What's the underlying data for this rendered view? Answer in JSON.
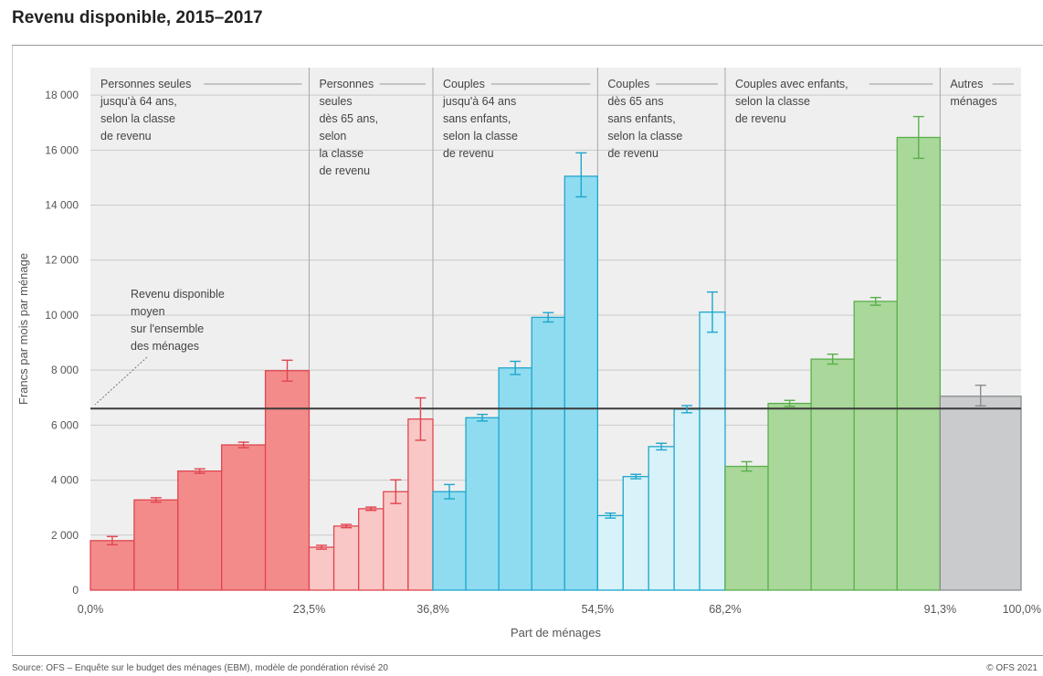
{
  "page": {
    "title": "Revenu disponible, 2015–2017",
    "source": "Source: OFS – Enquête sur le budget des ménages (EBM), modèle de pondération révisé 20",
    "copyright": "© OFS 2021"
  },
  "chart_data": {
    "type": "bar",
    "title": "Revenu disponible, 2015–2017",
    "xlabel": "Part de ménages",
    "ylabel": "Francs par mois par ménage",
    "ylim": [
      0,
      19000
    ],
    "xlim": [
      0,
      100
    ],
    "y_ticks": [
      0,
      2000,
      4000,
      6000,
      8000,
      10000,
      12000,
      14000,
      16000,
      18000
    ],
    "y_tick_labels": [
      "0",
      "2 000",
      "4 000",
      "6 000",
      "8 000",
      "10 000",
      "12 000",
      "14 000",
      "16 000",
      "18 000"
    ],
    "x_ticks": [
      0,
      23.5,
      36.8,
      54.5,
      68.2,
      91.3,
      100
    ],
    "x_tick_labels": [
      "0,0%",
      "23,5%",
      "36,8%",
      "54,5%",
      "68,2%",
      "91,3%",
      "100,0%"
    ],
    "grid": true,
    "reference_line": {
      "value": 6600,
      "label": [
        "Revenu disponible",
        "moyen",
        "sur l'ensemble",
        "des ménages"
      ]
    },
    "series": [
      {
        "group": [
          "Personnes seules",
          "jusqu'à 64 ans,",
          "selon la classe",
          "de revenu"
        ],
        "x_start": 0,
        "x_end": 23.5,
        "fill": "#f38b8a",
        "stroke": "#e0454f",
        "values": [
          1800,
          3280,
          4330,
          5280,
          7980
        ],
        "errors": [
          [
            1650,
            1950
          ],
          [
            3200,
            3360
          ],
          [
            4250,
            4410
          ],
          [
            5180,
            5380
          ],
          [
            7600,
            8360
          ]
        ]
      },
      {
        "group": [
          "Personnes",
          "seules",
          "dès 65 ans,",
          "selon",
          "la classe",
          "de revenu"
        ],
        "x_start": 23.5,
        "x_end": 36.8,
        "fill": "#f9c7c5",
        "stroke": "#e0454f",
        "values": [
          1560,
          2330,
          2960,
          3580,
          6220
        ],
        "errors": [
          [
            1490,
            1630
          ],
          [
            2270,
            2390
          ],
          [
            2900,
            3020
          ],
          [
            3150,
            4010
          ],
          [
            5450,
            6990
          ]
        ]
      },
      {
        "group": [
          "Couples",
          "jusqu'à 64 ans",
          "sans enfants,",
          "selon la classe",
          "de revenu"
        ],
        "x_start": 36.8,
        "x_end": 54.5,
        "fill": "#8fdcf0",
        "stroke": "#1fa6cc",
        "values": [
          3580,
          6270,
          8080,
          9920,
          15050
        ],
        "errors": [
          [
            3320,
            3840
          ],
          [
            6150,
            6390
          ],
          [
            7840,
            8320
          ],
          [
            9750,
            10090
          ],
          [
            14300,
            15900
          ]
        ]
      },
      {
        "group": [
          "Couples",
          "dès 65 ans",
          "sans enfants,",
          "selon la classe",
          "de revenu"
        ],
        "x_start": 54.5,
        "x_end": 68.2,
        "fill": "#d7f2f9",
        "stroke": "#1fa6cc",
        "values": [
          2710,
          4130,
          5220,
          6580,
          10110
        ],
        "errors": [
          [
            2620,
            2800
          ],
          [
            4050,
            4210
          ],
          [
            5100,
            5340
          ],
          [
            6450,
            6710
          ],
          [
            9380,
            10840
          ]
        ]
      },
      {
        "group": [
          "Couples avec enfants,",
          "selon la classe",
          "de revenu"
        ],
        "x_start": 68.2,
        "x_end": 91.3,
        "fill": "#a9d89a",
        "stroke": "#5aaf4b",
        "values": [
          4500,
          6790,
          8400,
          10500,
          16460
        ],
        "errors": [
          [
            4330,
            4670
          ],
          [
            6680,
            6900
          ],
          [
            8220,
            8580
          ],
          [
            10360,
            10640
          ],
          [
            15700,
            17220
          ]
        ]
      },
      {
        "group": [
          "Autres",
          "ménages"
        ],
        "x_start": 91.3,
        "x_end": 100,
        "fill": "#c9cbcd",
        "stroke": "#8a8c8e",
        "values": [
          7050
        ],
        "errors": [
          [
            6700,
            7450
          ]
        ]
      }
    ]
  }
}
